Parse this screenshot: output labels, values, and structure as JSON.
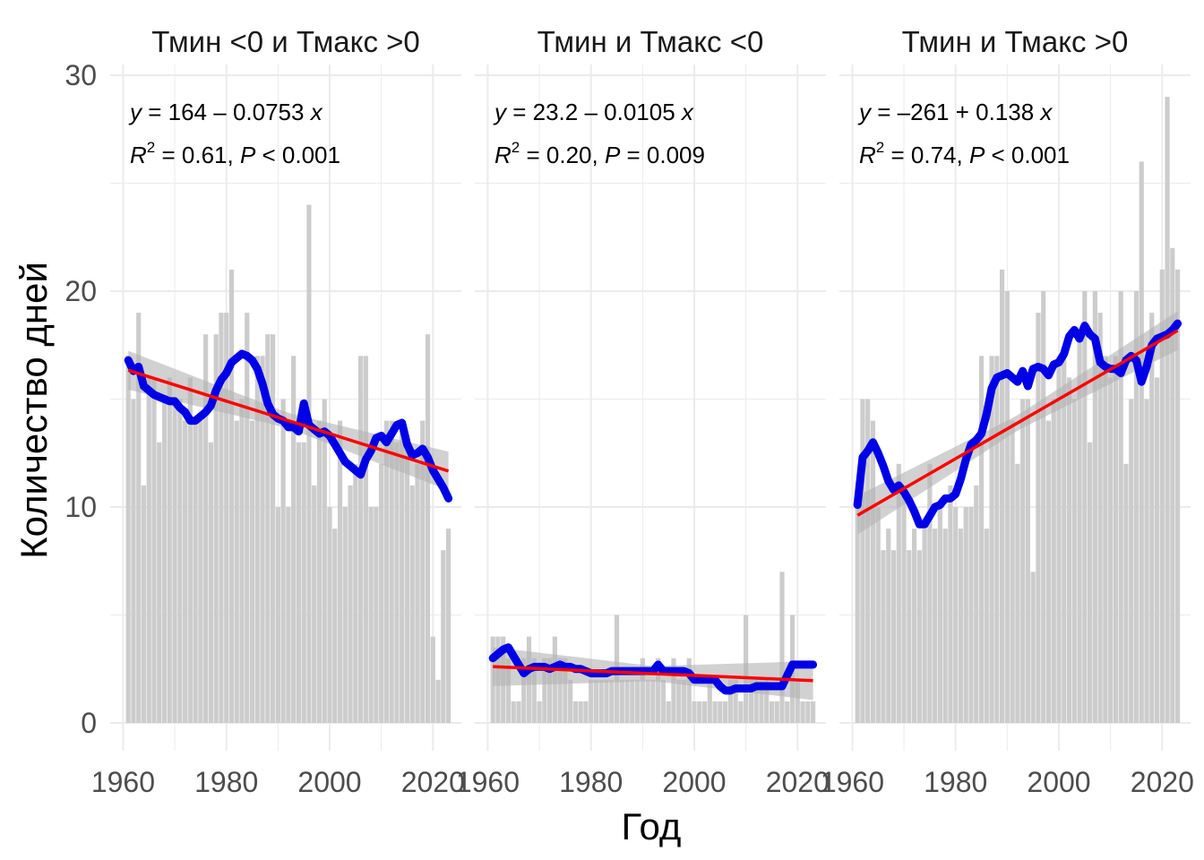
{
  "x_axis_title": "Год",
  "y_axis_title": "Количество дней",
  "colors": {
    "bars": "#cccccc",
    "rolling": "#0000e6",
    "trend": "#ff0000",
    "band": "#b3b3b3",
    "grid": "#ebebeb"
  },
  "y_ticks": [
    "0",
    "10",
    "20",
    "30"
  ],
  "x_ticks": [
    "1960",
    "1980",
    "2000",
    "2020"
  ],
  "chart_data": [
    {
      "type": "bar",
      "title": "Тмин <0 и Тмакс >0",
      "equation": {
        "y": "y",
        "eq": " = 164",
        "minus": " – ",
        "slope": "0.0753",
        "x": " x",
        "r": "R",
        "sup": "2",
        "r_val": " = 0.61, ",
        "p": "P",
        "p_val": " < 0.001"
      },
      "years": [
        1961,
        1962,
        1963,
        1964,
        1965,
        1966,
        1967,
        1968,
        1969,
        1970,
        1971,
        1972,
        1973,
        1974,
        1975,
        1976,
        1977,
        1978,
        1979,
        1980,
        1981,
        1982,
        1983,
        1984,
        1985,
        1986,
        1987,
        1988,
        1989,
        1990,
        1991,
        1992,
        1993,
        1994,
        1995,
        1996,
        1997,
        1998,
        1999,
        2000,
        2001,
        2002,
        2003,
        2004,
        2005,
        2006,
        2007,
        2008,
        2009,
        2010,
        2011,
        2012,
        2013,
        2014,
        2015,
        2016,
        2017,
        2018,
        2019,
        2020,
        2021,
        2022,
        2023
      ],
      "values": [
        17,
        15,
        19,
        11,
        16,
        16,
        13,
        15,
        16,
        15,
        15,
        14,
        16,
        14,
        14,
        18,
        13,
        18,
        19,
        19,
        21,
        14,
        15,
        19,
        14,
        17,
        17,
        18,
        18,
        10,
        15,
        10,
        17,
        13,
        13,
        24,
        11,
        14,
        15,
        10,
        9,
        14,
        10,
        11,
        12,
        17,
        17,
        10,
        10,
        12,
        14,
        14,
        13,
        14,
        13,
        11,
        12,
        14,
        18,
        4,
        2,
        8,
        9
      ],
      "rolling": [
        16.8,
        16.3,
        16.5,
        15.6,
        15.4,
        15.2,
        15.1,
        15.0,
        14.9,
        14.9,
        14.6,
        14.4,
        14.0,
        14.0,
        14.2,
        14.4,
        14.7,
        15.4,
        15.9,
        16.2,
        16.7,
        16.9,
        17.1,
        17.0,
        16.8,
        16.4,
        15.7,
        14.8,
        14.3,
        14.1,
        14.0,
        13.7,
        13.7,
        13.5,
        14.8,
        13.8,
        13.6,
        13.4,
        13.5,
        13.3,
        12.9,
        12.5,
        12.1,
        11.9,
        11.7,
        11.5,
        12.2,
        12.6,
        13.2,
        13.3,
        13.0,
        13.4,
        13.8,
        13.9,
        12.9,
        12.4,
        12.5,
        12.7,
        12.3,
        11.7,
        11.3,
        10.9,
        10.4
      ],
      "trend": {
        "intercept": 164,
        "slope": -0.0753
      },
      "r2": 0.61
    },
    {
      "type": "bar",
      "title": "Тмин и Тмакс <0",
      "equation": {
        "y": "y",
        "eq": " = 23.2",
        "minus": " – ",
        "slope": "0.0105",
        "x": " x",
        "r": "R",
        "sup": "2",
        "r_val": " = 0.20, ",
        "p": "P",
        "p_val": " = 0.009"
      },
      "years": [
        1961,
        1962,
        1963,
        1964,
        1965,
        1966,
        1967,
        1968,
        1969,
        1970,
        1971,
        1972,
        1973,
        1974,
        1975,
        1976,
        1977,
        1978,
        1979,
        1980,
        1981,
        1982,
        1983,
        1984,
        1985,
        1986,
        1987,
        1988,
        1989,
        1990,
        1991,
        1992,
        1993,
        1994,
        1995,
        1996,
        1997,
        1998,
        1999,
        2000,
        2001,
        2002,
        2003,
        2004,
        2005,
        2006,
        2007,
        2008,
        2009,
        2010,
        2011,
        2012,
        2013,
        2014,
        2015,
        2016,
        2017,
        2018,
        2019,
        2020,
        2021,
        2022,
        2023
      ],
      "values": [
        4,
        4,
        4,
        3,
        1,
        1,
        3,
        4,
        3,
        1,
        3,
        3,
        4,
        3,
        3,
        2,
        1,
        1,
        1,
        2,
        2,
        2,
        2,
        2,
        5,
        2,
        2,
        2,
        2,
        3,
        2,
        2,
        3,
        2,
        1,
        3,
        2,
        2,
        3,
        1,
        1,
        1,
        2,
        1,
        1,
        1,
        2,
        2,
        1,
        5,
        2,
        2,
        2,
        2,
        1,
        1,
        7,
        1,
        5,
        2,
        1,
        1,
        1
      ],
      "rolling": [
        3.0,
        3.2,
        3.4,
        3.5,
        3.1,
        2.7,
        2.3,
        2.5,
        2.6,
        2.6,
        2.6,
        2.5,
        2.6,
        2.7,
        2.6,
        2.6,
        2.5,
        2.5,
        2.4,
        2.3,
        2.3,
        2.3,
        2.3,
        2.4,
        2.4,
        2.4,
        2.4,
        2.4,
        2.4,
        2.4,
        2.4,
        2.4,
        2.7,
        2.4,
        2.4,
        2.4,
        2.4,
        2.4,
        2.3,
        2.0,
        2.0,
        2.0,
        2.0,
        2.0,
        1.7,
        1.5,
        1.5,
        1.6,
        1.6,
        1.6,
        1.6,
        1.7,
        1.7,
        1.7,
        1.7,
        1.7,
        1.7,
        2.2,
        2.7,
        2.7,
        2.7,
        2.7,
        2.7
      ],
      "trend": {
        "intercept": 23.2,
        "slope": -0.0105
      },
      "r2": 0.2
    },
    {
      "type": "bar",
      "title": "Тмин и Тмакс >0",
      "equation": {
        "y": "y",
        "eq": " = ",
        "minus": "–",
        "slope": "261 + 0.138",
        "x": " x",
        "r": "R",
        "sup": "2",
        "r_val": " = 0.74, ",
        "p": "P",
        "p_val": " < 0.001"
      },
      "years": [
        1961,
        1962,
        1963,
        1964,
        1965,
        1966,
        1967,
        1968,
        1969,
        1970,
        1971,
        1972,
        1973,
        1974,
        1975,
        1976,
        1977,
        1978,
        1979,
        1980,
        1981,
        1982,
        1983,
        1984,
        1985,
        1986,
        1987,
        1988,
        1989,
        1990,
        1991,
        1992,
        1993,
        1994,
        1995,
        1996,
        1997,
        1998,
        1999,
        2000,
        2001,
        2002,
        2003,
        2004,
        2005,
        2006,
        2007,
        2008,
        2009,
        2010,
        2011,
        2012,
        2013,
        2014,
        2015,
        2016,
        2017,
        2018,
        2019,
        2020,
        2021,
        2022,
        2023
      ],
      "values": [
        10,
        15,
        15,
        14,
        10,
        8,
        9,
        8,
        12,
        11,
        8,
        9,
        8,
        9,
        12,
        9,
        10,
        9,
        11,
        10,
        9,
        10,
        10,
        11,
        17,
        9,
        17,
        17,
        21,
        20,
        14,
        12,
        15,
        15,
        7,
        19,
        20,
        14,
        15,
        17,
        17,
        16,
        15,
        18,
        20,
        13,
        20,
        19,
        17,
        16,
        17,
        20,
        12,
        15,
        20,
        26,
        15,
        19,
        16,
        21,
        29,
        22,
        21
      ],
      "rolling": [
        10.1,
        12.3,
        12.6,
        13.0,
        12.5,
        11.9,
        11.2,
        10.8,
        11.0,
        10.7,
        10.3,
        9.8,
        9.2,
        9.2,
        9.6,
        10.0,
        10.1,
        10.4,
        10.4,
        10.6,
        11.3,
        12.2,
        12.9,
        13.1,
        13.4,
        14.3,
        15.5,
        16.0,
        16.1,
        16.2,
        16.0,
        15.8,
        16.3,
        15.6,
        16.4,
        16.5,
        16.4,
        16.1,
        16.6,
        16.7,
        17.1,
        17.9,
        18.2,
        17.8,
        18.4,
        18.0,
        17.8,
        16.7,
        16.5,
        16.4,
        16.4,
        16.2,
        16.8,
        17.0,
        16.8,
        15.8,
        16.5,
        17.5,
        17.8,
        17.9,
        18.0,
        18.2,
        18.5
      ],
      "trend": {
        "intercept": -261,
        "slope": 0.138
      },
      "r2": 0.74
    }
  ]
}
